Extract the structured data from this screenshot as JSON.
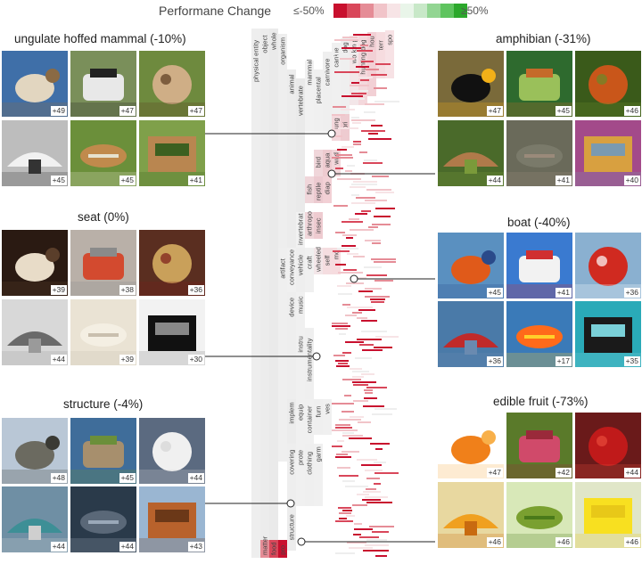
{
  "legend": {
    "title": "Performane Change",
    "low_label": "≤-50%",
    "high_label": "≥50%",
    "colors": [
      "#c8102e",
      "#d9475a",
      "#e58c96",
      "#f1c4c9",
      "#f7e4e6",
      "#e9f5e9",
      "#c8e8c8",
      "#92d592",
      "#5fc45f",
      "#2ca82c"
    ]
  },
  "groups": [
    {
      "key": "ungulate",
      "title": "ungulate hoffed mammal (-10%)",
      "tiles": [
        {
          "badge": "+49",
          "icon": "goat-photo"
        },
        {
          "badge": "+47",
          "icon": "zebra-photo"
        },
        {
          "badge": "+47",
          "icon": "antelope-photo"
        },
        {
          "badge": "+45",
          "icon": "ram-photo"
        },
        {
          "badge": "+45",
          "icon": "gazelle-photo"
        },
        {
          "badge": "+41",
          "icon": "camel-photo"
        }
      ]
    },
    {
      "key": "seat",
      "title": "seat (0%)",
      "tiles": [
        {
          "badge": "+39",
          "icon": "fur-chair-photo"
        },
        {
          "badge": "+38",
          "icon": "stool-photo"
        },
        {
          "badge": "+36",
          "icon": "ornate-chair-photo"
        },
        {
          "badge": "+44",
          "icon": "armchair-photo"
        },
        {
          "badge": "+39",
          "icon": "sofa-photo"
        },
        {
          "badge": "+30",
          "icon": "bench-photo"
        }
      ]
    },
    {
      "key": "structure",
      "title": "structure (-4%)",
      "tiles": [
        {
          "badge": "+48",
          "icon": "bridge-photo"
        },
        {
          "badge": "+45",
          "icon": "garden-photo"
        },
        {
          "badge": "+44",
          "icon": "balustrade-photo"
        },
        {
          "badge": "+44",
          "icon": "yurt-photo"
        },
        {
          "badge": "+44",
          "icon": "plaque-photo"
        },
        {
          "badge": "+43",
          "icon": "barn-photo"
        }
      ]
    },
    {
      "key": "amphibian",
      "title": "amphibian (-31%)",
      "tiles": [
        {
          "badge": "+47",
          "icon": "salamander-photo"
        },
        {
          "badge": "+45",
          "icon": "frog-photo"
        },
        {
          "badge": "+46",
          "icon": "newt-photo"
        },
        {
          "badge": "+44",
          "icon": "newt-leaf-photo"
        },
        {
          "badge": "+41",
          "icon": "toad-photo"
        },
        {
          "badge": "+40",
          "icon": "lizard-photo"
        }
      ]
    },
    {
      "key": "boat",
      "title": "boat (-40%)",
      "tiles": [
        {
          "badge": "+45",
          "icon": "lifeboat-photo"
        },
        {
          "badge": "+41",
          "icon": "speedboat-photo"
        },
        {
          "badge": "+36",
          "icon": "fireboat-photo"
        },
        {
          "badge": "+36",
          "icon": "sailboat-photo"
        },
        {
          "badge": "+17",
          "icon": "kayak-photo"
        },
        {
          "badge": "+35",
          "icon": "gondola-photo"
        }
      ]
    },
    {
      "key": "fruit",
      "title": "edible fruit (-73%)",
      "tiles": [
        {
          "badge": "+47",
          "icon": "orange-photo"
        },
        {
          "badge": "+42",
          "icon": "fig-photo"
        },
        {
          "badge": "+44",
          "icon": "pomegranate-photo"
        },
        {
          "badge": "+46",
          "icon": "papaya-photo"
        },
        {
          "badge": "+46",
          "icon": "custard-apple-photo"
        },
        {
          "badge": "+46",
          "icon": "lemon-photo"
        }
      ]
    }
  ],
  "tree_labels": [
    "physical entity",
    "object",
    "whole",
    "organism",
    "animal",
    "vertebrate",
    "mammal",
    "placental",
    "carnivore",
    "canine",
    "dog",
    "working",
    "hunting dog",
    "hou",
    "terr",
    "spo",
    "ung",
    "pri",
    "bird",
    "aqua",
    "wad",
    "fish",
    "reptile",
    "diap",
    "invertebrat",
    "arthropo",
    "insec",
    "conveyance",
    "vehicle",
    "craft",
    "wheeled",
    "self",
    "mo",
    "music",
    "device",
    "instru",
    "instrumentality",
    "artifact",
    "implem",
    "equip",
    "container",
    "furn",
    "ves",
    "covering",
    "prote",
    "clothing",
    "garm",
    "structure",
    "matter",
    "food",
    "pro"
  ]
}
